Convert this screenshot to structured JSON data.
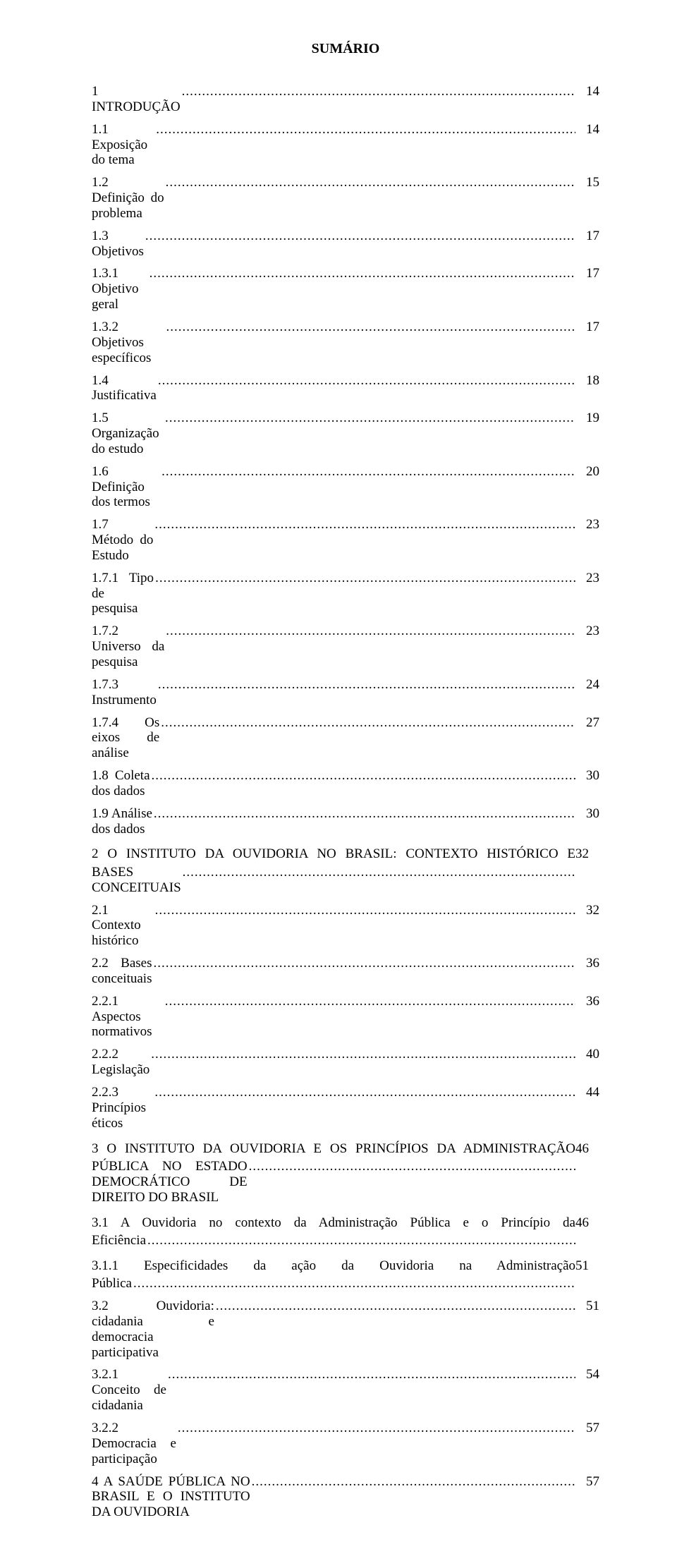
{
  "title": "SUMÁRIO",
  "dots": "........................................................................................................................................................................................................",
  "entries": [
    {
      "label": "1 INTRODUÇÃO",
      "page": "14",
      "dots": true
    },
    {
      "label": "1.1 Exposição do tema",
      "page": "14",
      "dots": true
    },
    {
      "label": "1.2 Definição do problema",
      "page": "15",
      "dots": true
    },
    {
      "label": "1.3 Objetivos",
      "page": "17",
      "dots": true
    },
    {
      "label": "1.3.1 Objetivo geral",
      "page": "17",
      "dots": true
    },
    {
      "label": "1.3.2 Objetivos específicos",
      "page": "17",
      "dots": true
    },
    {
      "label": "1.4 Justificativa",
      "page": "18",
      "dots": true
    },
    {
      "label": "1.5 Organização do estudo",
      "page": "19",
      "dots": true
    },
    {
      "label": "1.6 Definição dos termos",
      "page": "20",
      "dots": true
    },
    {
      "label": "1.7 Método do Estudo",
      "page": "23",
      "dots": true
    },
    {
      "label": "1.7.1 Tipo de pesquisa",
      "page": "23",
      "dots": true
    },
    {
      "label": "1.7.2 Universo da pesquisa",
      "page": "23",
      "dots": true
    },
    {
      "label": "1.7.3 Instrumento",
      "page": "24",
      "dots": true
    },
    {
      "label": "1.7.4 Os eixos de análise",
      "page": "27",
      "dots": true
    },
    {
      "label": "1.8 Coleta dos dados",
      "page": "30",
      "dots": true
    },
    {
      "label": "1.9 Análise dos dados",
      "page": "30",
      "dots": true
    }
  ],
  "multi_1": {
    "line1": "2 O INSTITUTO DA OUVIDORIA NO BRASIL: CONTEXTO HISTÓRICO E",
    "line2_label": "BASES CONCEITUAIS",
    "page": "32"
  },
  "entries2": [
    {
      "label": "2.1 Contexto histórico",
      "page": "32",
      "dots": true
    },
    {
      "label": "2.2 Bases conceituais",
      "page": "36",
      "dots": true
    },
    {
      "label": "2.2.1 Aspectos normativos",
      "page": "36",
      "dots": true
    },
    {
      "label": "2.2.2 Legislação",
      "page": "40",
      "dots": true
    },
    {
      "label": "2.2.3 Princípios éticos",
      "page": "44",
      "dots": true
    }
  ],
  "multi_2": {
    "line1": "3 O INSTITUTO DA OUVIDORIA E OS PRINCÍPIOS DA ADMINISTRAÇÃO",
    "line2_label": "PÚBLICA NO ESTADO DEMOCRÁTICO DE DIREITO DO BRASIL",
    "page": "46"
  },
  "multi_3": {
    "line1": "3.1 A Ouvidoria no contexto da Administração Pública e o Princípio da",
    "line2_label": "Eficiência",
    "page": "46"
  },
  "multi_4": {
    "line1": "3.1.1 Especificidades da ação da Ouvidoria na Administração",
    "line2_label": "Pública",
    "page": "51"
  },
  "entries3": [
    {
      "label": "3.2 Ouvidoria: cidadania e democracia participativa",
      "page": "51",
      "dots": true
    },
    {
      "label": "3.2.1 Conceito de cidadania",
      "page": "54",
      "dots": true
    },
    {
      "label": "3.2.2 Democracia e participação",
      "page": "57",
      "dots": true
    },
    {
      "label": "4 A SAÚDE PÚBLICA NO BRASIL E O INSTITUTO DA OUVIDORIA",
      "page": "57",
      "dots": true
    }
  ]
}
